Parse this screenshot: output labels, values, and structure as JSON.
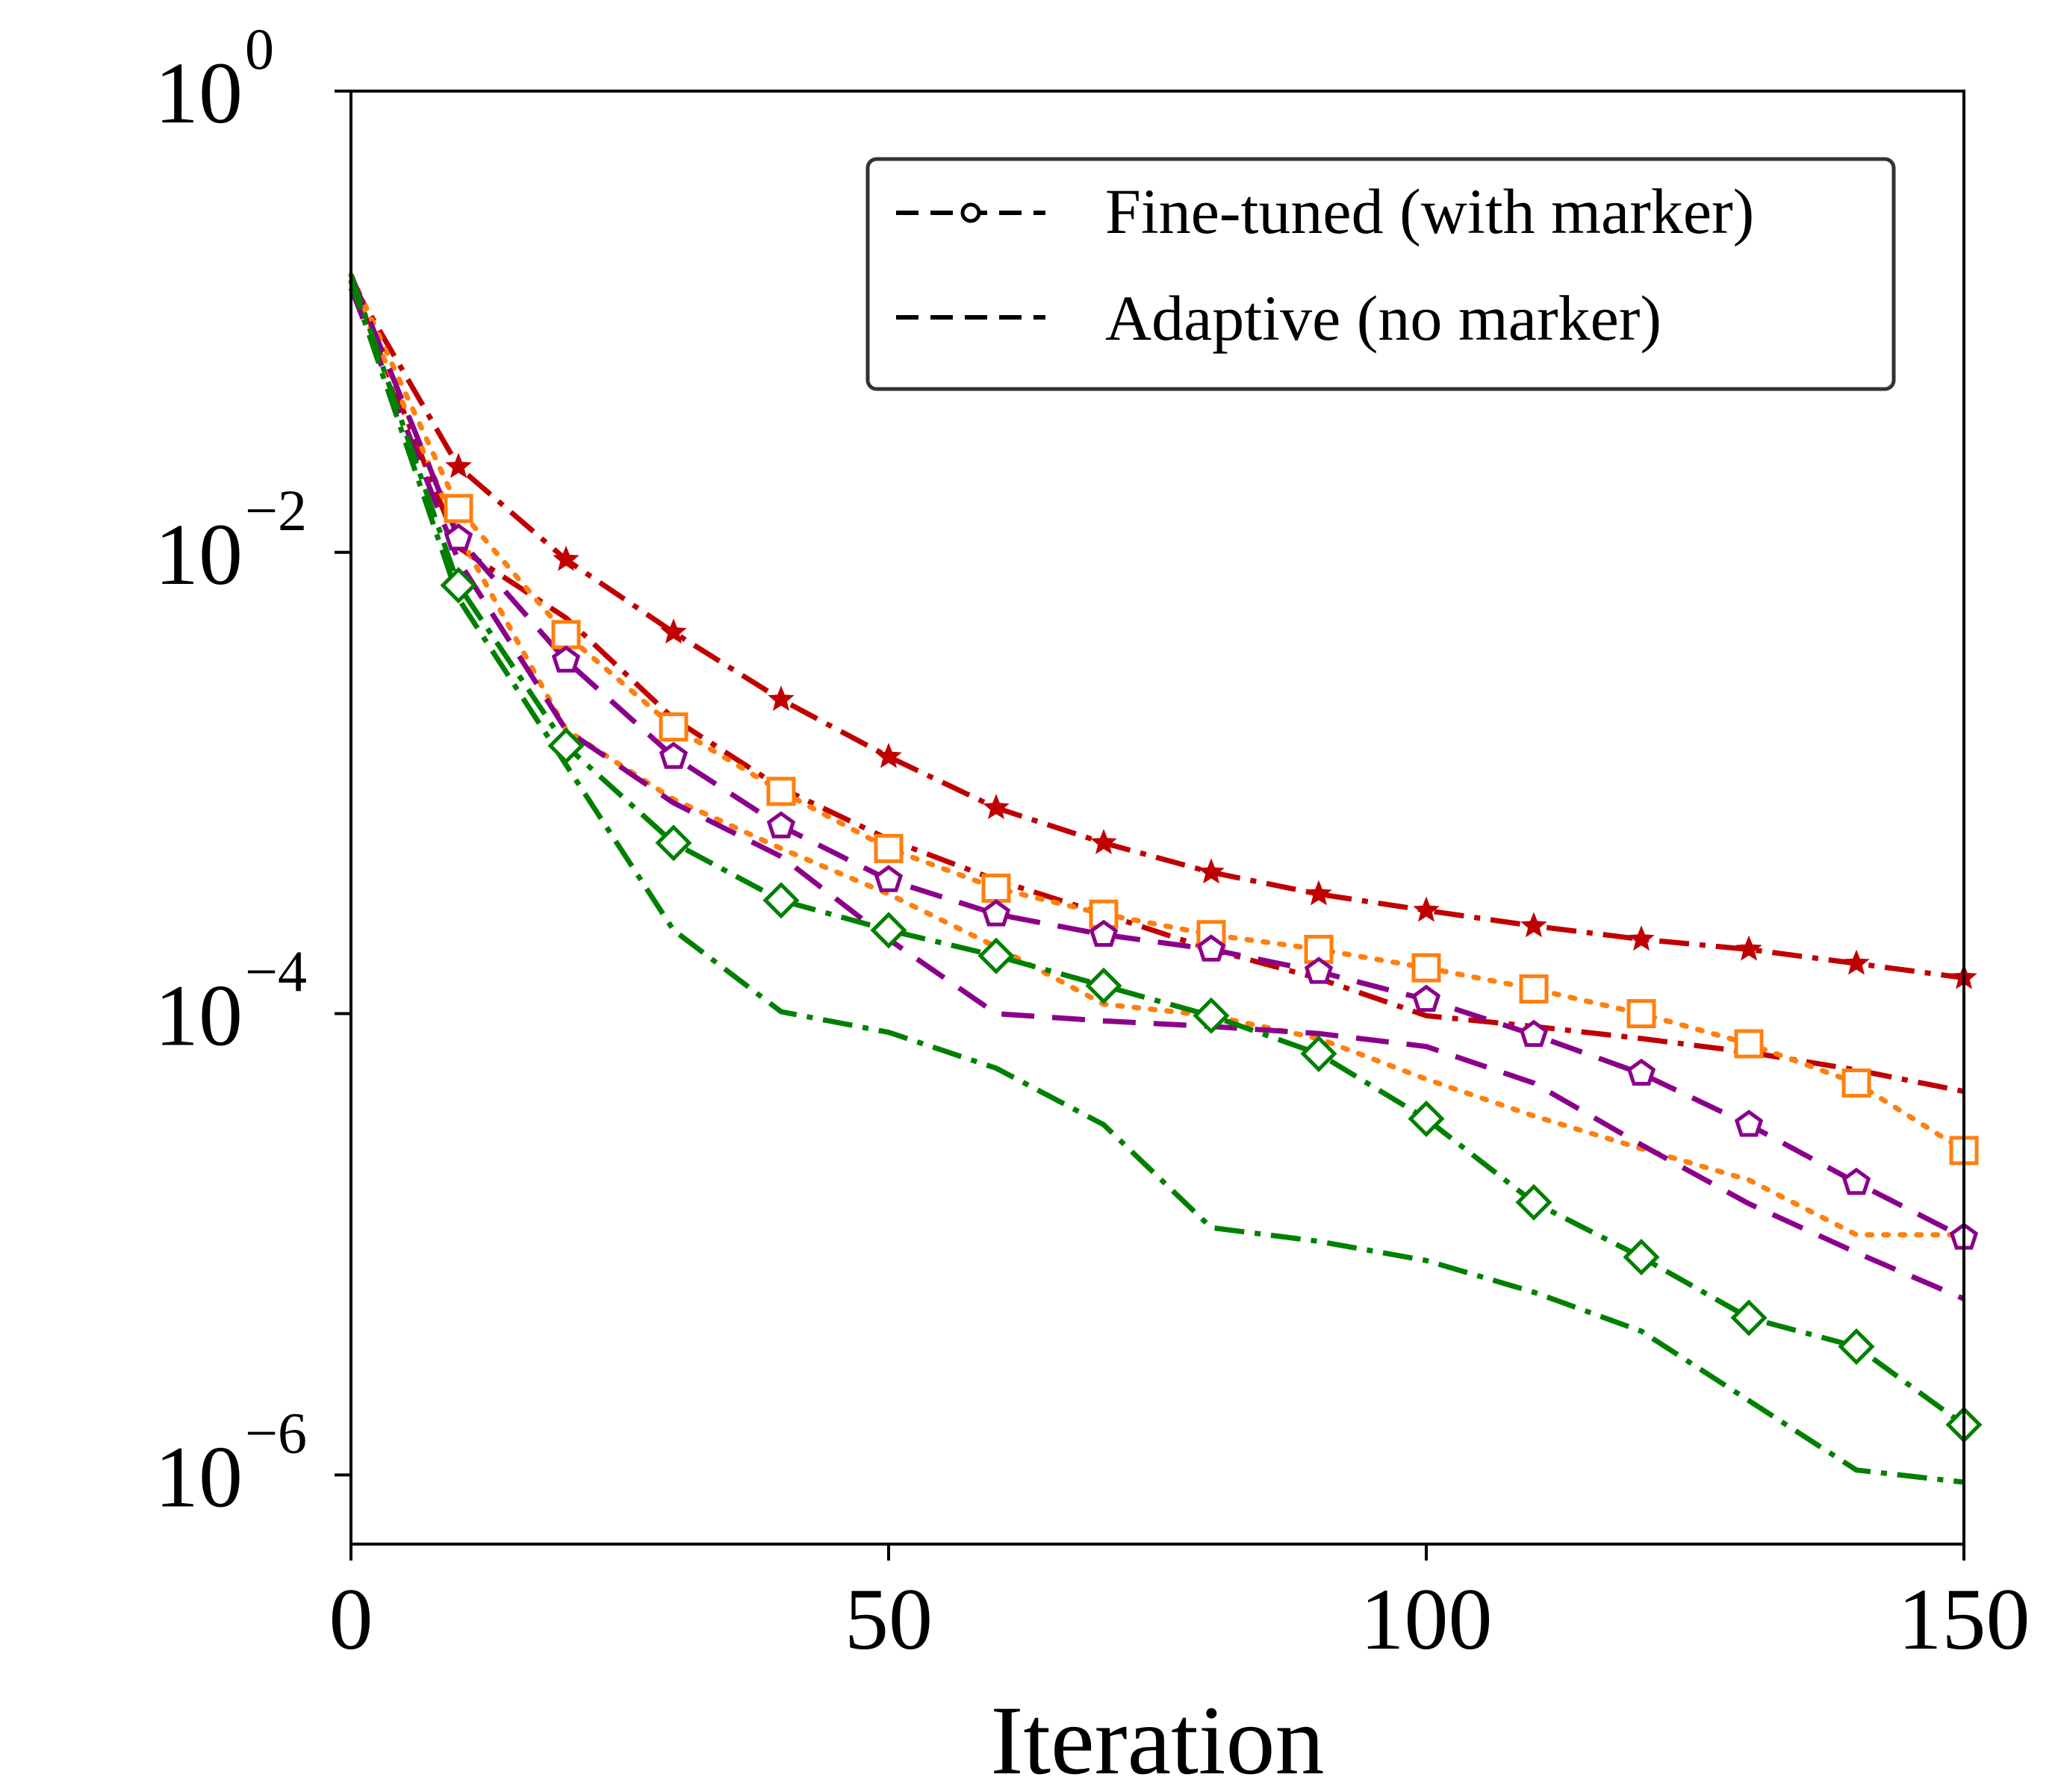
{
  "chart_data": {
    "type": "line",
    "title": "",
    "xlabel": "Iteration",
    "ylabel": "",
    "xlim": [
      0,
      150
    ],
    "ylim_log10": [
      -6.3,
      0
    ],
    "yscale": "log",
    "xticks": [
      0,
      50,
      100,
      150
    ],
    "xtick_labels": [
      "0",
      "50",
      "100",
      "150"
    ],
    "yticks_log10": [
      0,
      -2,
      -4,
      -6
    ],
    "ytick_labels": [
      {
        "base": "10",
        "exp": "0"
      },
      {
        "base": "10",
        "exp": "−2"
      },
      {
        "base": "10",
        "exp": "−4"
      },
      {
        "base": "10",
        "exp": "−6"
      }
    ],
    "legend": {
      "placement": "top-right",
      "entries": [
        {
          "label": "Fine-tuned (with marker)",
          "style": "dashed",
          "marker": "circle"
        },
        {
          "label": "Adaptive (no marker)",
          "style": "dashed",
          "marker": "none"
        }
      ]
    },
    "colors": {
      "red": "#c00000",
      "orange": "#ff7f0e",
      "purple": "#8b008b",
      "green": "#008000",
      "axis": "#000000",
      "legend_border": "#333333"
    },
    "series": [
      {
        "name": "Fine-tuned red",
        "color": "red",
        "dash": "dashdot",
        "marker": "star",
        "x": [
          0,
          10,
          20,
          30,
          40,
          50,
          60,
          70,
          80,
          90,
          100,
          110,
          120,
          130,
          140,
          150
        ],
        "y": [
          0.15,
          0.0235,
          0.0093,
          0.0045,
          0.0023,
          0.0013,
          0.00078,
          0.00055,
          0.00041,
          0.00033,
          0.00028,
          0.00024,
          0.00021,
          0.00019,
          0.000165,
          0.000143
        ]
      },
      {
        "name": "Adaptive red",
        "color": "red",
        "dash": "dashdot",
        "marker": "none",
        "x": [
          0,
          10,
          20,
          30,
          40,
          50,
          60,
          70,
          80,
          90,
          100,
          110,
          120,
          130,
          140,
          150
        ],
        "y": [
          0.15,
          0.0105,
          0.0052,
          0.0019,
          0.00095,
          0.00057,
          0.00038,
          0.00027,
          0.00019,
          0.000142,
          9.8e-05,
          8.8e-05,
          7.8e-05,
          6.8e-05,
          5.7e-05,
          4.6e-05
        ]
      },
      {
        "name": "Fine-tuned orange",
        "color": "orange",
        "dash": "dotted",
        "marker": "square",
        "x": [
          0,
          10,
          20,
          30,
          40,
          50,
          60,
          70,
          80,
          90,
          100,
          110,
          120,
          130,
          140,
          150
        ],
        "y": [
          0.16,
          0.0155,
          0.0044,
          0.00175,
          0.00092,
          0.00052,
          0.00035,
          0.00027,
          0.00022,
          0.00019,
          0.000158,
          0.000128,
          0.0001,
          7.4e-05,
          5e-05,
          2.55e-05
        ]
      },
      {
        "name": "Adaptive orange",
        "color": "orange",
        "dash": "dotted",
        "marker": "none",
        "x": [
          0,
          10,
          20,
          30,
          40,
          50,
          60,
          70,
          80,
          90,
          100,
          110,
          120,
          130,
          140,
          150
        ],
        "y": [
          0.15,
          0.012,
          0.0017,
          0.00085,
          0.00052,
          0.00033,
          0.000195,
          0.00011,
          9.8e-05,
          7.8e-05,
          5.2e-05,
          3.6e-05,
          2.6e-05,
          1.9e-05,
          1.1e-05,
          1.1e-05
        ]
      },
      {
        "name": "Fine-tuned purple",
        "color": "purple",
        "dash": "dashed",
        "marker": "pentagon",
        "x": [
          0,
          10,
          20,
          30,
          40,
          50,
          60,
          70,
          80,
          90,
          100,
          110,
          120,
          130,
          140,
          150
        ],
        "y": [
          0.16,
          0.0115,
          0.0034,
          0.0013,
          0.00065,
          0.00038,
          0.00027,
          0.00022,
          0.00019,
          0.000152,
          0.000115,
          8.1e-05,
          5.5e-05,
          3.3e-05,
          1.85e-05,
          1.07e-05
        ]
      },
      {
        "name": "Adaptive purple",
        "color": "purple",
        "dash": "dashed",
        "marker": "none",
        "x": [
          0,
          10,
          20,
          30,
          40,
          50,
          60,
          70,
          80,
          90,
          100,
          110,
          120,
          130,
          140,
          150
        ],
        "y": [
          0.14,
          0.0092,
          0.0017,
          0.00082,
          0.00048,
          0.00021,
          0.0001,
          9.3e-05,
          8.8e-05,
          8.2e-05,
          7.2e-05,
          5e-05,
          2.7e-05,
          1.5e-05,
          9.2e-06,
          5.8e-06
        ]
      },
      {
        "name": "Fine-tuned green",
        "color": "green",
        "dash": "dashdot",
        "marker": "diamond",
        "x": [
          0,
          10,
          20,
          30,
          40,
          50,
          60,
          70,
          80,
          90,
          100,
          110,
          120,
          130,
          140,
          150
        ],
        "y": [
          0.16,
          0.0072,
          0.00145,
          0.00055,
          0.00031,
          0.00023,
          0.000178,
          0.000132,
          9.8e-05,
          6.7e-05,
          3.5e-05,
          1.52e-05,
          8.8e-06,
          4.8e-06,
          3.6e-06,
          1.65e-06
        ]
      },
      {
        "name": "Adaptive green",
        "color": "green",
        "dash": "dashdot",
        "marker": "none",
        "x": [
          0,
          10,
          20,
          30,
          40,
          50,
          60,
          70,
          80,
          90,
          100,
          110,
          120,
          130,
          140,
          150
        ],
        "y": [
          0.15,
          0.0063,
          0.0012,
          0.00023,
          0.000102,
          8.3e-05,
          5.8e-05,
          3.3e-05,
          1.18e-05,
          1.03e-05,
          8.5e-06,
          6.2e-06,
          4.2e-06,
          2.1e-06,
          1.05e-06,
          9.3e-07
        ]
      }
    ]
  }
}
